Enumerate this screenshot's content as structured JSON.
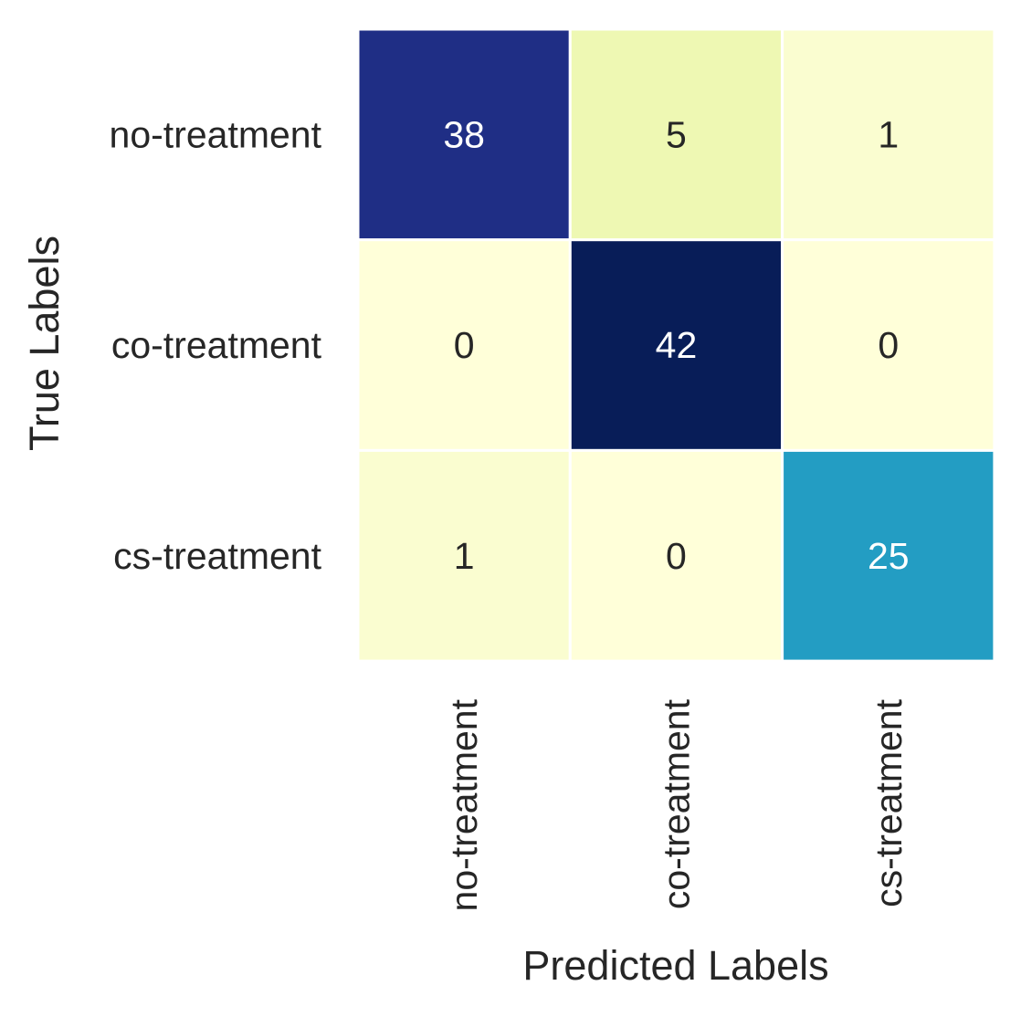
{
  "chart_data": {
    "type": "heatmap",
    "title": "",
    "xlabel": "Predicted Labels",
    "ylabel": "True Labels",
    "x_categories": [
      "no-treatment",
      "co-treatment",
      "cs-treatment"
    ],
    "y_categories": [
      "no-treatment",
      "co-treatment",
      "cs-treatment"
    ],
    "values": [
      [
        38,
        5,
        1
      ],
      [
        0,
        42,
        0
      ],
      [
        1,
        0,
        25
      ]
    ],
    "colormap": "YlGnBu",
    "cell_colors": [
      [
        "#1f2e85",
        "#eef8b3",
        "#fafdd0"
      ],
      [
        "#ffffd9",
        "#081d58",
        "#ffffd9"
      ],
      [
        "#fafdd0",
        "#ffffd9",
        "#239dc3"
      ]
    ],
    "colorbar": false,
    "annotations": true
  }
}
